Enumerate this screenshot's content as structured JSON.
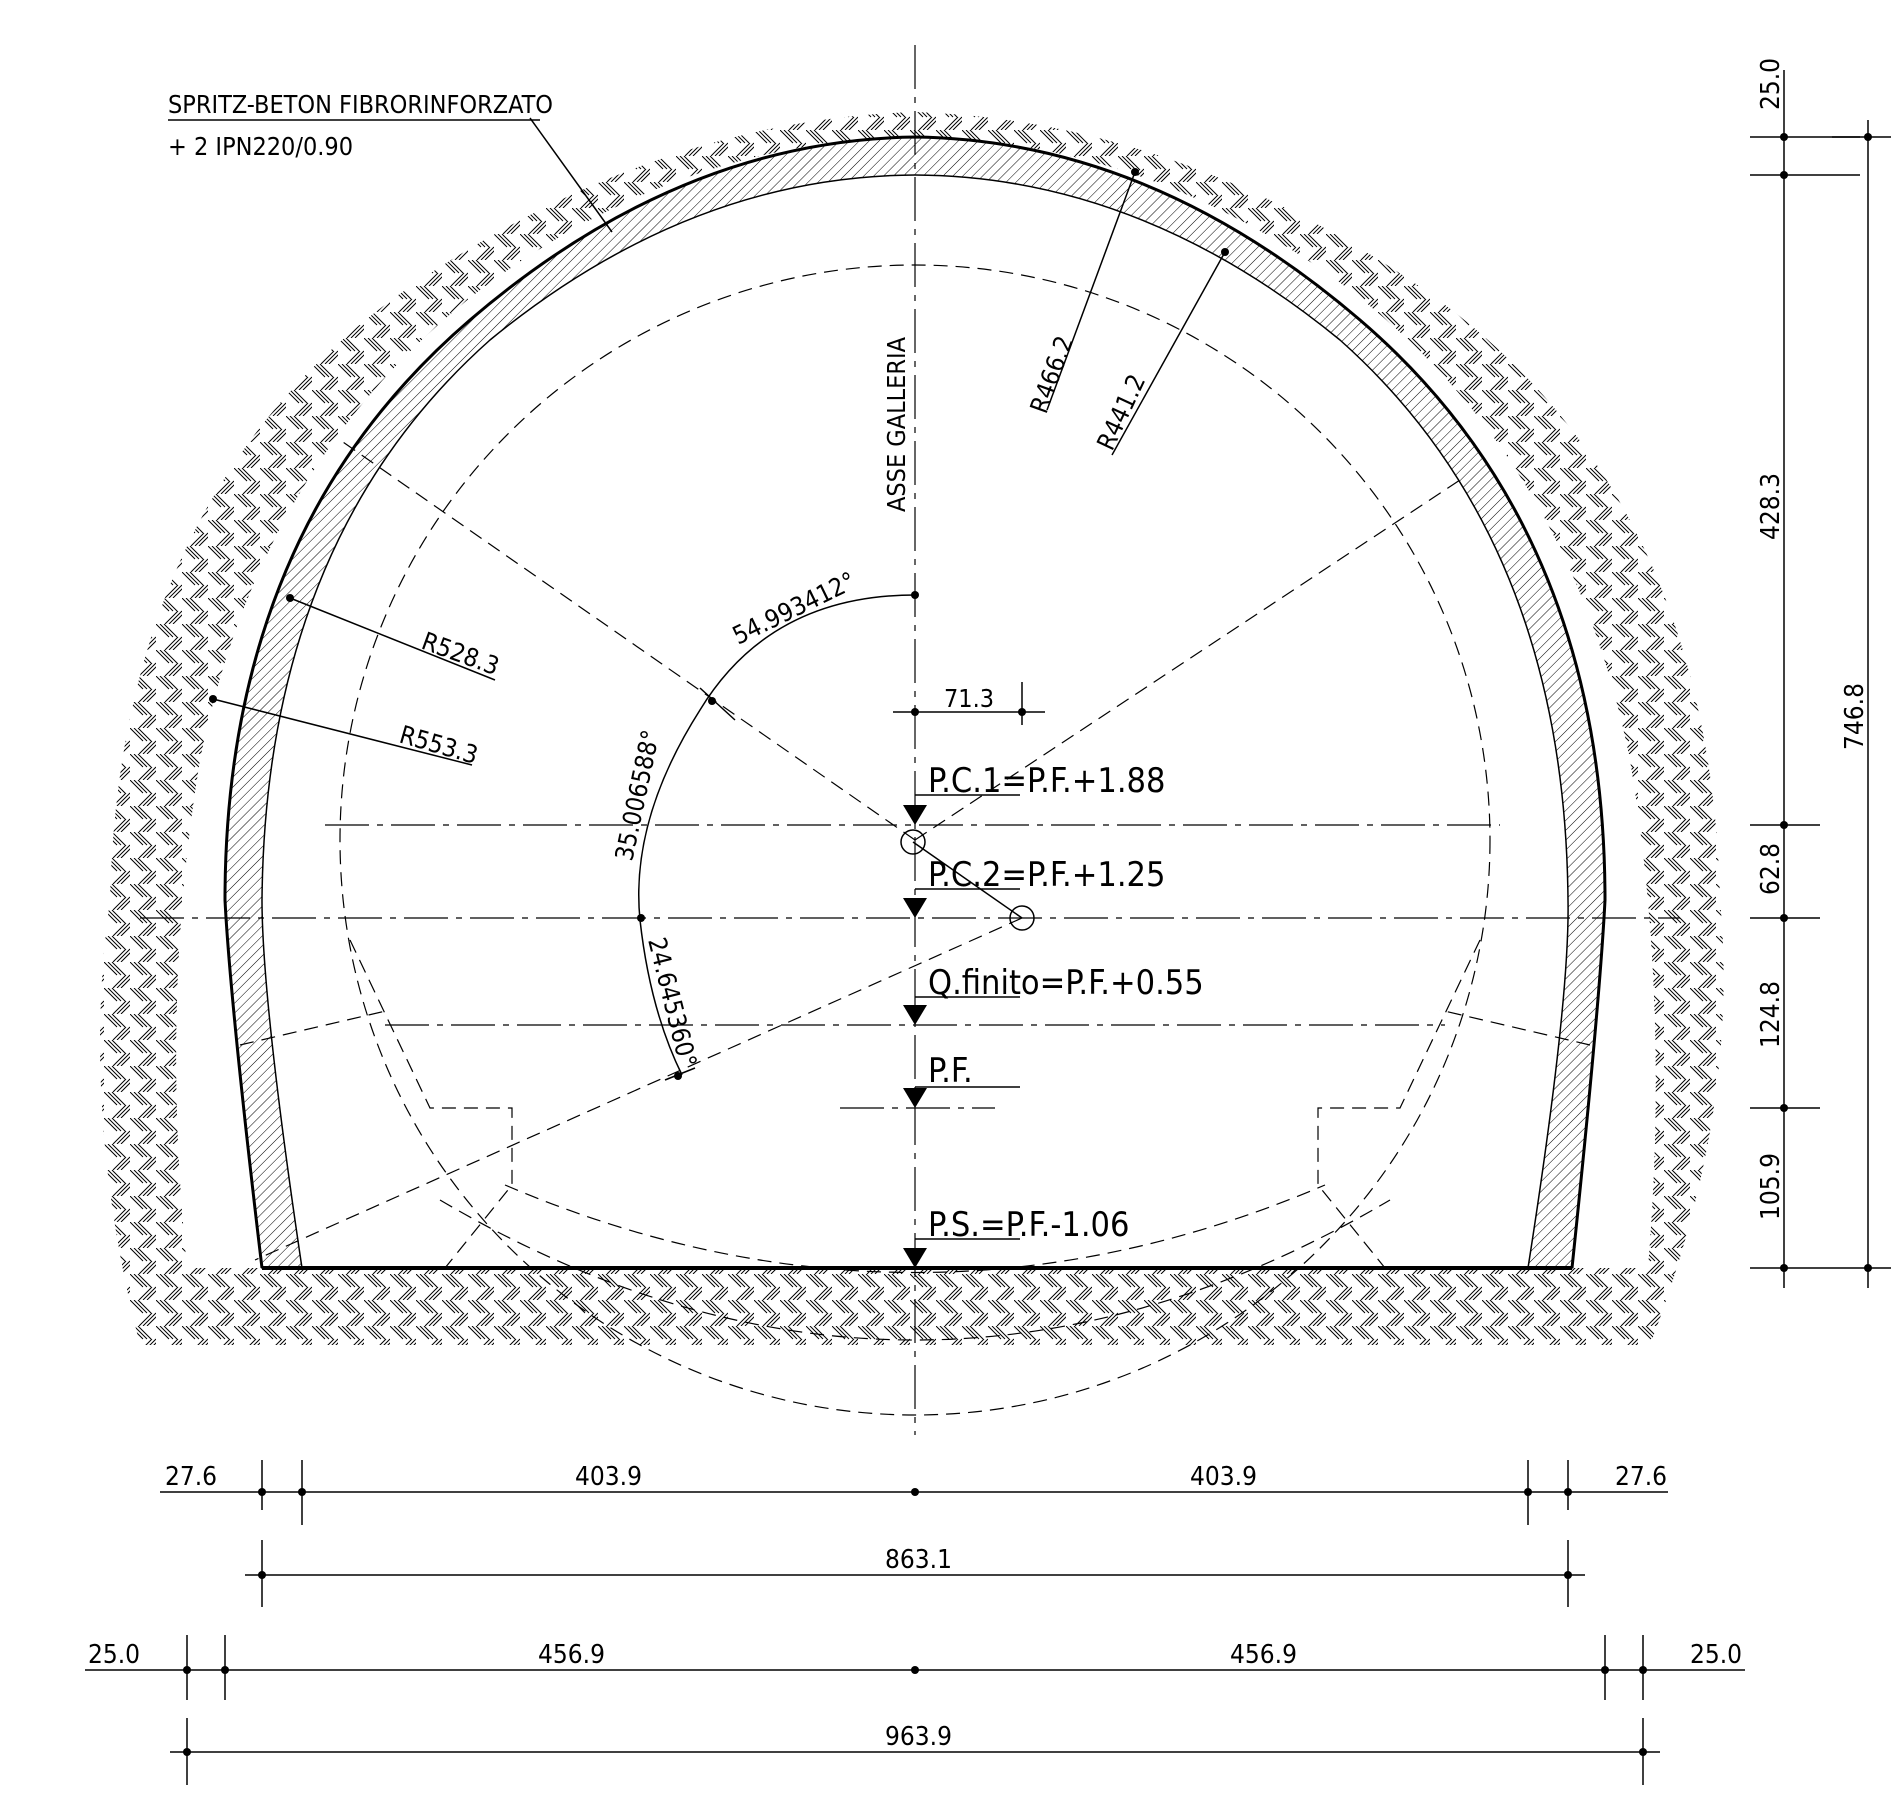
{
  "note": {
    "line1": "SPRITZ-BETON FIBRORINFORZATO",
    "line2": "+ 2 IPN220/0.90"
  },
  "axis_label": "ASSE GALLERIA",
  "radii": {
    "r1": "R466.2",
    "r2": "R441.2",
    "r3": "R528.3",
    "r4": "R553.3"
  },
  "angles": {
    "a1": "54.993412°",
    "a2": "35.006588°",
    "a3": "24.645360°"
  },
  "offset_dim": "71.3",
  "levels": {
    "pc1": "P.C.1=P.F.+1.88",
    "pc2": "P.C.2=P.F.+1.25",
    "qfinito": "Q.finito=P.F.+0.55",
    "pf": "P.F.",
    "ps": "P.S.=P.F.-1.06"
  },
  "vertical_dims": {
    "top": "25.0",
    "upper": "428.3",
    "mid": "62.8",
    "lower": "124.8",
    "bottom": "105.9",
    "total": "746.8"
  },
  "horizontal_dims": {
    "row1_left": "27.6",
    "row1_mid_left": "403.9",
    "row1_mid_right": "403.9",
    "row1_right": "27.6",
    "row2_total": "863.1",
    "row3_left": "25.0",
    "row3_mid_left": "456.9",
    "row3_mid_right": "456.9",
    "row3_right": "25.0",
    "row4_total": "963.9"
  }
}
